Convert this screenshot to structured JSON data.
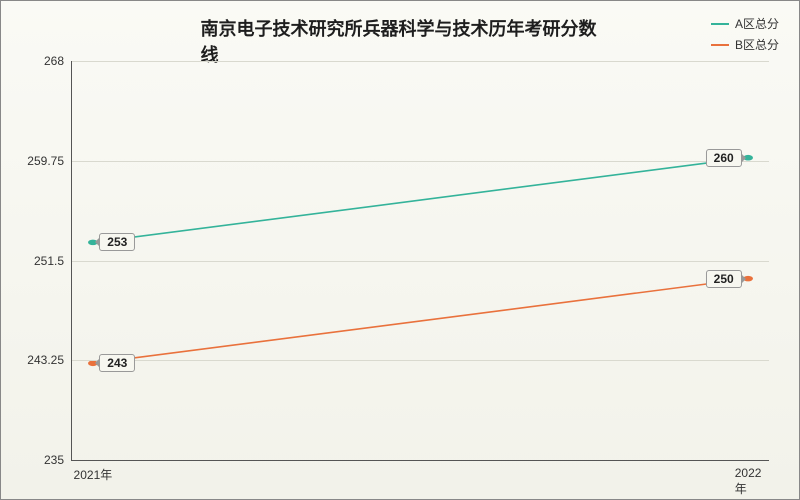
{
  "chart": {
    "type": "line",
    "title": "南京电子技术研究所兵器科学与技术历年考研分数线",
    "title_fontsize": 18,
    "title_fontweight": "bold",
    "background_gradient": [
      "#fafaf5",
      "#f2f2ea"
    ],
    "axis_color": "#555555",
    "grid_color": "#d9d9cf",
    "label_fontsize": 12,
    "point_label_bg": "#f7f7f0",
    "point_label_border": "#999999",
    "x": {
      "categories": [
        "2021年",
        "2022年"
      ],
      "positions_pct": [
        3,
        97
      ]
    },
    "y": {
      "min": 235,
      "max": 268,
      "ticks": [
        235,
        243.25,
        251.5,
        259.75,
        268
      ],
      "tick_labels": [
        "235",
        "243.25",
        "251.5",
        "259.75",
        "268"
      ]
    },
    "series": [
      {
        "id": "a",
        "name": "A区总分",
        "color": "#34b39a",
        "line_width": 1.6,
        "values": [
          253,
          260
        ],
        "point_labels": [
          "253",
          "260"
        ]
      },
      {
        "id": "b",
        "name": "B区总分",
        "color": "#e9713c",
        "line_width": 1.6,
        "values": [
          243,
          250
        ],
        "point_labels": [
          "243",
          "250"
        ]
      }
    ],
    "legend": {
      "position": "top-right"
    }
  }
}
